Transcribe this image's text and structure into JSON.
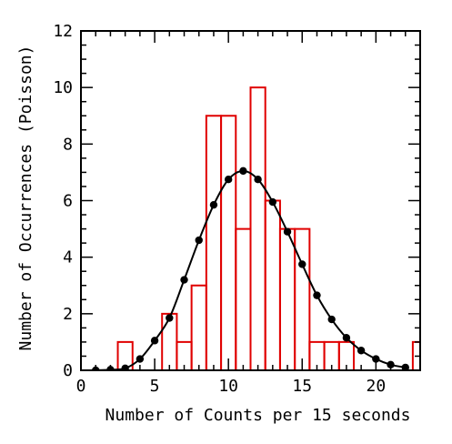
{
  "chart_data": {
    "type": "line",
    "title": "",
    "xlabel": "Number of Counts per 15 seconds",
    "ylabel": "Number of Occurrences (Poisson)",
    "xlim": [
      0,
      23
    ],
    "ylim": [
      0,
      12
    ],
    "x_ticks": [
      0,
      5,
      10,
      15,
      20
    ],
    "y_ticks": [
      0,
      2,
      4,
      6,
      8,
      10,
      12
    ],
    "x_tick_labels": [
      "0",
      "5",
      "10",
      "15",
      "20"
    ],
    "y_tick_labels": [
      "0",
      "2",
      "4",
      "6",
      "8",
      "10",
      "12"
    ],
    "grid": false,
    "legend": "none",
    "series": [
      {
        "kind": "histogram-step",
        "color": "#e00000",
        "bin_width": 1,
        "bin_centers": [
          1,
          2,
          3,
          4,
          5,
          6,
          7,
          8,
          9,
          10,
          11,
          12,
          13,
          14,
          15,
          16,
          17,
          18,
          19,
          20,
          21,
          22,
          23
        ],
        "values": [
          0,
          0,
          1,
          0,
          0,
          2,
          1,
          3,
          9,
          9,
          5,
          10,
          6,
          5,
          5,
          1,
          1,
          1,
          0,
          0,
          0,
          0,
          1
        ]
      },
      {
        "kind": "line-with-points",
        "color": "#000000",
        "x": [
          1,
          2,
          3,
          4,
          5,
          6,
          7,
          8,
          9,
          10,
          11,
          12,
          13,
          14,
          15,
          16,
          17,
          18,
          19,
          20,
          21,
          22
        ],
        "y": [
          0.0,
          0.02,
          0.07,
          0.4,
          1.05,
          1.85,
          3.2,
          4.6,
          5.85,
          6.75,
          7.05,
          6.75,
          5.95,
          4.9,
          3.75,
          2.65,
          1.8,
          1.15,
          0.7,
          0.4,
          0.2,
          0.1
        ]
      }
    ]
  }
}
